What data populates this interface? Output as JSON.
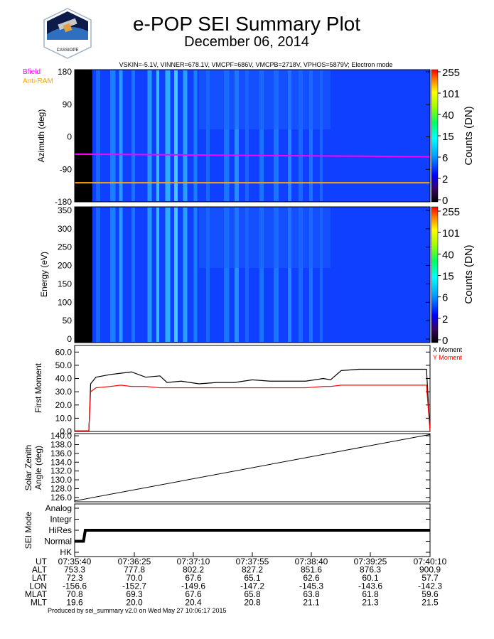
{
  "header": {
    "title": "e-POP SEI Summary Plot",
    "date": "December 06, 2014",
    "logo_text": "CASSIOPE",
    "params": "VSKIN=-5.1V, VINNER=678.1V, VMCPF=686V, VMCPB=2718V, VPHOS=5879V; Electron mode"
  },
  "footer": {
    "produced_by": "Produced by sei_summary v2.0 on Wed May 27 10:06:17 2015"
  },
  "colors": {
    "bfield": "#ff00ff",
    "antiram": "#ffa500",
    "x_moment": "#000000",
    "y_moment": "#ff0000",
    "background_spectrogram": "#1040ff"
  },
  "chart_data": [
    {
      "type": "heatmap",
      "name": "azimuth-spectrogram",
      "ylabel": "Azimuth (deg)",
      "ylim": [
        -180,
        180
      ],
      "yticks": [
        "180",
        "90",
        "0",
        "-90",
        "-180"
      ],
      "legend": [
        {
          "label": "Bfield",
          "color": "#ff00ff"
        },
        {
          "label": "Anti-RAM",
          "color": "#ffa500"
        }
      ],
      "overlay_lines": [
        {
          "name": "Bfield",
          "color": "#ff00ff",
          "start_deg": -50,
          "end_deg": -57
        },
        {
          "name": "Anti-RAM",
          "color": "#ffa500",
          "start_deg": -128,
          "end_deg": -128
        }
      ],
      "colorbar": {
        "label": "Counts (DN)",
        "ticks": [
          "255",
          "101",
          "40",
          "15",
          "6",
          "2",
          "0"
        ]
      }
    },
    {
      "type": "heatmap",
      "name": "energy-spectrogram",
      "ylabel": "Energy (eV)",
      "ylim": [
        0,
        350
      ],
      "yticks": [
        "350",
        "300",
        "250",
        "200",
        "150",
        "100",
        "50",
        "0"
      ],
      "colorbar": {
        "label": "Counts (DN)",
        "ticks": [
          "255",
          "101",
          "40",
          "15",
          "6",
          "2",
          "0"
        ]
      }
    },
    {
      "type": "line",
      "name": "first-moment",
      "ylabel": "First Moment",
      "ylim": [
        0,
        65
      ],
      "yticks": [
        "60.0",
        "50.0",
        "40.0",
        "30.0",
        "20.0",
        "10.0",
        "0.0"
      ],
      "series": [
        {
          "name": "X Moment",
          "color": "#000000",
          "t": [
            0,
            0.04,
            0.045,
            0.06,
            0.1,
            0.13,
            0.16,
            0.2,
            0.24,
            0.26,
            0.3,
            0.35,
            0.4,
            0.45,
            0.5,
            0.55,
            0.6,
            0.65,
            0.7,
            0.72,
            0.75,
            0.8,
            0.85,
            0.9,
            0.95,
            0.99,
            1.0
          ],
          "values": [
            0.5,
            0.5,
            36,
            41,
            43,
            44,
            45,
            41,
            42,
            37,
            38,
            36,
            37,
            37,
            39,
            38,
            38,
            38,
            40,
            39,
            46,
            47,
            47,
            47,
            47,
            47,
            0.5
          ]
        },
        {
          "name": "Y Moment",
          "color": "#ff0000",
          "t": [
            0,
            0.04,
            0.045,
            0.06,
            0.1,
            0.13,
            0.16,
            0.2,
            0.24,
            0.26,
            0.3,
            0.35,
            0.4,
            0.45,
            0.5,
            0.55,
            0.6,
            0.65,
            0.7,
            0.72,
            0.75,
            0.8,
            0.85,
            0.9,
            0.95,
            0.99,
            1.0
          ],
          "values": [
            0.5,
            0.5,
            30,
            33,
            34,
            35,
            34,
            34,
            33,
            33,
            33,
            33,
            33,
            33,
            33,
            33,
            33,
            33,
            34,
            34,
            35,
            35,
            35,
            35,
            35,
            35,
            0.5
          ]
        }
      ]
    },
    {
      "type": "line",
      "name": "solar-zenith-angle",
      "ylabel": "Solar Zenith Angle (deg)",
      "ylim": [
        125,
        140.5
      ],
      "yticks": [
        "140.0",
        "138.0",
        "136.0",
        "134.0",
        "132.0",
        "130.0",
        "128.0",
        "126.0"
      ],
      "series": [
        {
          "name": "SZA",
          "color": "#000000",
          "t": [
            0,
            1
          ],
          "values": [
            125.2,
            140.3
          ]
        }
      ]
    },
    {
      "type": "line",
      "name": "sei-mode",
      "ylabel": "SEI Mode",
      "yticks": [
        "Analog",
        "Integr",
        "HiRes",
        "Normal",
        "HK"
      ],
      "series": [
        {
          "name": "Mode",
          "color": "#000000",
          "t": [
            0,
            0.025,
            0.03,
            1.0
          ],
          "values": [
            "Normal",
            "Normal",
            "HiRes",
            "HiRes"
          ]
        }
      ]
    }
  ],
  "ephemeris": {
    "rows": [
      {
        "label": "UT",
        "values": [
          "07:35:40",
          "07:36:25",
          "07:37:10",
          "07:37:55",
          "07:38:40",
          "07:39:25",
          "07:40:10"
        ]
      },
      {
        "label": "ALT",
        "values": [
          "753.3",
          "777.8",
          "802.2",
          "827.2",
          "851.6",
          "876.3",
          "900.9"
        ]
      },
      {
        "label": "LAT",
        "values": [
          "72.3",
          "70.0",
          "67.6",
          "65.1",
          "62.6",
          "60.1",
          "57.7"
        ]
      },
      {
        "label": "LON",
        "values": [
          "-156.6",
          "-152.7",
          "-149.6",
          "-147.2",
          "-145.3",
          "-143.6",
          "-142.3"
        ]
      },
      {
        "label": "MLAT",
        "values": [
          "70.8",
          "69.3",
          "67.6",
          "65.8",
          "63.8",
          "61.8",
          "59.6"
        ]
      },
      {
        "label": "MLT",
        "values": [
          "19.6",
          "20.0",
          "20.4",
          "20.8",
          "21.1",
          "21.3",
          "21.5"
        ]
      }
    ]
  }
}
